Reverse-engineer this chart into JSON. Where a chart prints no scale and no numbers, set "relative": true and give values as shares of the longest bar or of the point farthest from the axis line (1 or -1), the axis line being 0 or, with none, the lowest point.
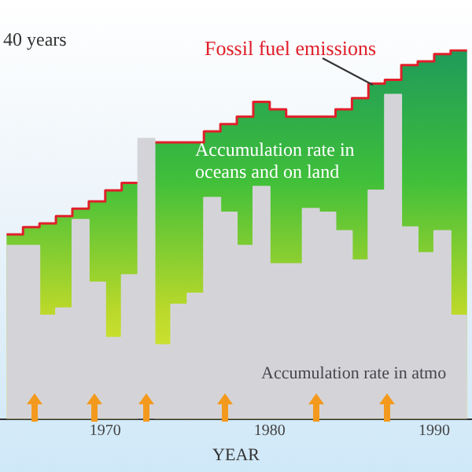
{
  "chart_data": {
    "type": "area",
    "relative": true,
    "xlabel": "YEAR",
    "x": [
      1964,
      1965,
      1965,
      1966,
      1966,
      1967,
      1967,
      1968,
      1968,
      1969,
      1969,
      1970,
      1970,
      1971,
      1971,
      1972,
      1972,
      1973,
      1973,
      1974,
      1974,
      1975,
      1975,
      1976,
      1976,
      1977,
      1977,
      1978,
      1978,
      1979,
      1979,
      1980,
      1980,
      1981,
      1981,
      1982,
      1982,
      1983,
      1983,
      1984,
      1984,
      1985,
      1985,
      1986,
      1986,
      1987,
      1987,
      1988,
      1988,
      1989,
      1989,
      1990,
      1990,
      1991,
      1991,
      1992
    ],
    "xlim": [
      1963.6,
      1992.3
    ],
    "xticks": [
      {
        "value": 1965,
        "label": null
      },
      1970,
      {
        "value": 1975,
        "label": null
      },
      1980,
      {
        "value": 1985,
        "label": null
      },
      1990
    ],
    "tick_labels": "x",
    "grid": false,
    "legend": false,
    "series": [
      {
        "name": "Fossil fuel emissions",
        "color": "#e0202a",
        "values": [
          0.5,
          0.5,
          0.52,
          0.52,
          0.53,
          0.53,
          0.55,
          0.55,
          0.57,
          0.57,
          0.59,
          0.59,
          0.62,
          0.62,
          0.64,
          0.64,
          null,
          null,
          0.75,
          0.75,
          0.75,
          0.75,
          0.75,
          0.75,
          0.78,
          0.78,
          0.8,
          0.8,
          0.82,
          0.82,
          0.86,
          0.86,
          0.84,
          0.84,
          0.82,
          0.82,
          0.82,
          0.82,
          0.82,
          0.82,
          0.84,
          0.84,
          0.87,
          0.87,
          0.91,
          0.91,
          0.92,
          0.92,
          0.96,
          0.96,
          0.97,
          0.97,
          0.99,
          0.99,
          1.0,
          1.0
        ]
      },
      {
        "name": "Accumulation rate in atmo",
        "color": "#d4d4d8",
        "values": [
          0.47,
          0.47,
          0.47,
          0.47,
          0.28,
          0.28,
          0.3,
          0.3,
          0.54,
          0.54,
          0.37,
          0.37,
          0.22,
          0.22,
          0.39,
          0.39,
          0.76,
          0.76,
          0.2,
          0.2,
          0.31,
          0.31,
          0.34,
          0.34,
          0.6,
          0.6,
          0.56,
          0.56,
          0.47,
          0.47,
          0.63,
          0.63,
          0.42,
          0.42,
          0.42,
          0.42,
          0.57,
          0.57,
          0.56,
          0.56,
          0.51,
          0.51,
          0.43,
          0.43,
          0.62,
          0.62,
          0.88,
          0.88,
          0.52,
          0.52,
          0.45,
          0.45,
          0.51,
          0.51,
          0.28,
          0.28
        ]
      }
    ],
    "annotations": [
      "40 years",
      "Accumulation rate in oceans and on land"
    ]
  }
}
